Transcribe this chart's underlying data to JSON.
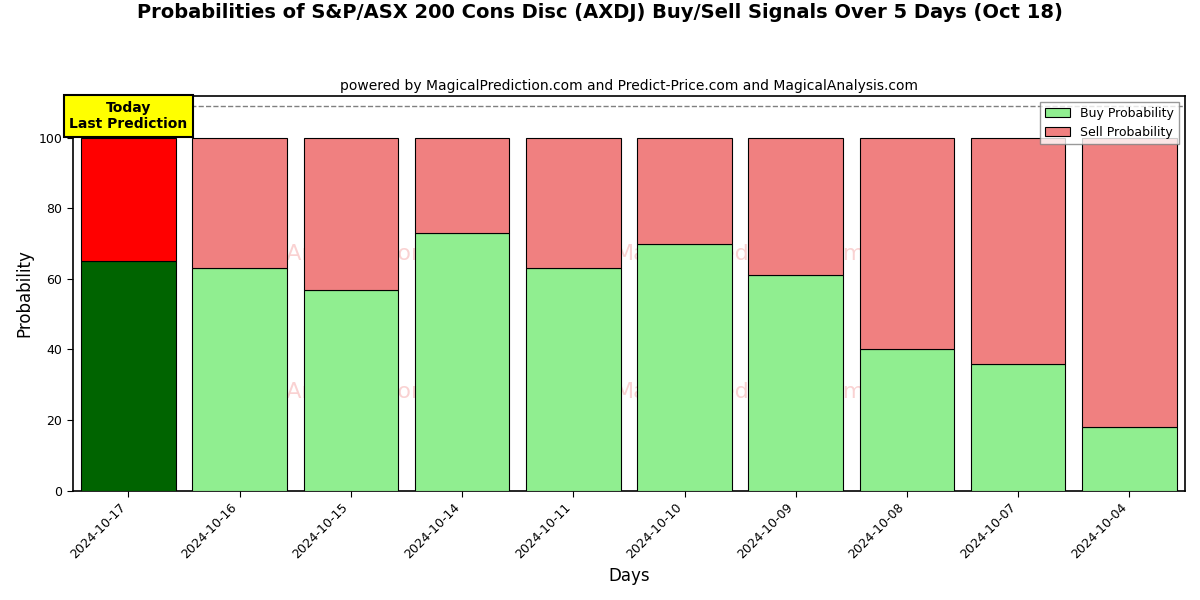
{
  "title": "Probabilities of S&P/ASX 200 Cons Disc (AXDJ) Buy/Sell Signals Over 5 Days (Oct 18)",
  "subtitle": "powered by MagicalPrediction.com and Predict-Price.com and MagicalAnalysis.com",
  "xlabel": "Days",
  "ylabel": "Probability",
  "dates": [
    "2024-10-17",
    "2024-10-16",
    "2024-10-15",
    "2024-10-14",
    "2024-10-11",
    "2024-10-10",
    "2024-10-09",
    "2024-10-08",
    "2024-10-07",
    "2024-10-04"
  ],
  "buy_probs": [
    65,
    63,
    57,
    73,
    63,
    70,
    61,
    40,
    36,
    18
  ],
  "sell_probs": [
    35,
    37,
    43,
    27,
    37,
    30,
    39,
    60,
    64,
    82
  ],
  "today_bar_buy_color": "#006400",
  "today_bar_sell_color": "#FF0000",
  "other_bar_buy_color": "#90EE90",
  "other_bar_sell_color": "#F08080",
  "bar_edge_color": "#000000",
  "legend_buy_color": "#90EE90",
  "legend_sell_color": "#F08080",
  "ylim": [
    0,
    112
  ],
  "yticks": [
    0,
    20,
    40,
    60,
    80,
    100
  ],
  "dashed_line_y": 109,
  "annotation_text": "Today\nLast Prediction",
  "annotation_bg_color": "#FFFF00",
  "watermark_color": "#F08080",
  "watermark_alpha": 0.35,
  "title_fontsize": 14,
  "subtitle_fontsize": 10,
  "axis_label_fontsize": 12,
  "tick_fontsize": 9,
  "bar_width": 0.85,
  "plot_bg_color": "#FFFFFF",
  "fig_bg_color": "#FFFFFF"
}
